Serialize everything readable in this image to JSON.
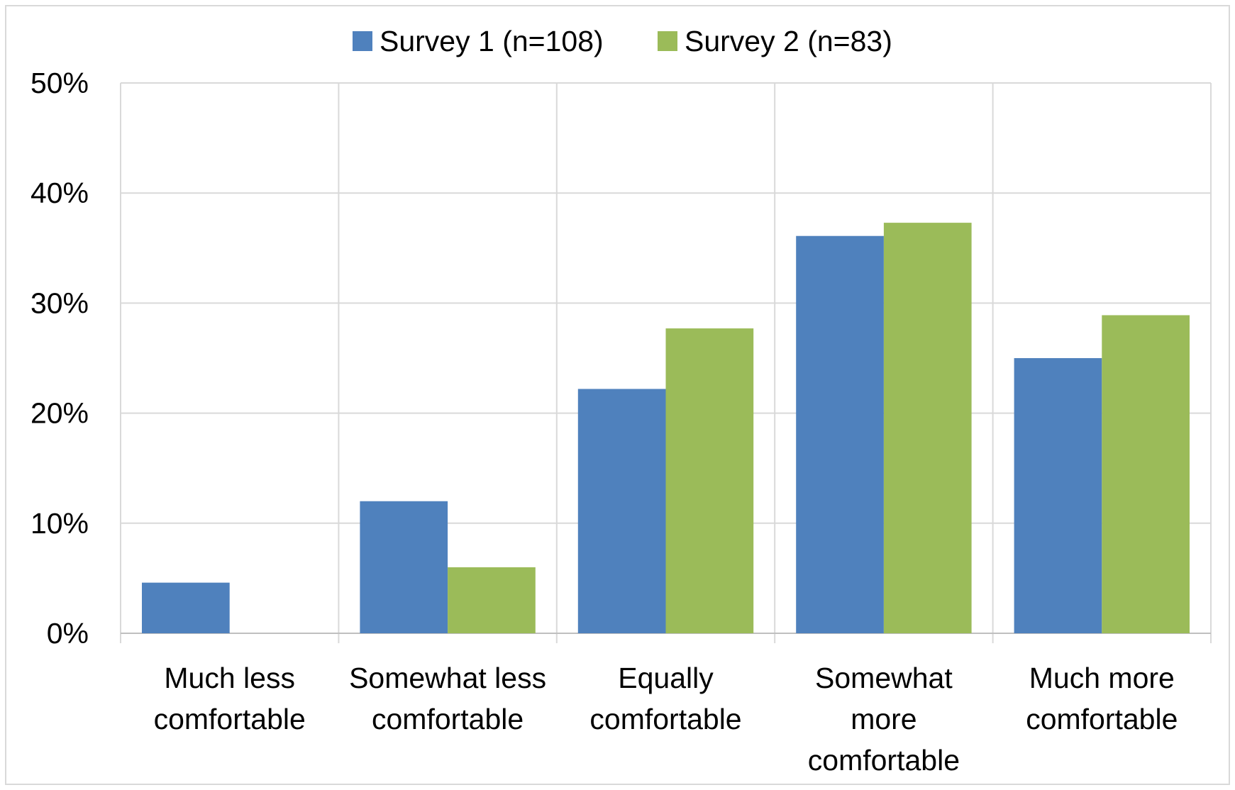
{
  "chart_data": {
    "type": "bar",
    "categories": [
      [
        "Much less",
        "comfortable"
      ],
      [
        "Somewhat less",
        "comfortable"
      ],
      [
        "Equally",
        "comfortable"
      ],
      [
        "Somewhat",
        "more",
        "comfortable"
      ],
      [
        "Much more",
        "comfortable"
      ]
    ],
    "series": [
      {
        "name": "Survey 1 (n=108)",
        "color": "#4F81BD",
        "values": [
          4.6,
          12.0,
          22.2,
          36.1,
          25.0
        ]
      },
      {
        "name": "Survey 2 (n=83)",
        "color": "#9BBB59",
        "values": [
          0.0,
          6.0,
          27.7,
          37.3,
          28.9
        ]
      }
    ],
    "y_ticks": [
      "0%",
      "10%",
      "20%",
      "30%",
      "40%",
      "50%"
    ],
    "ylim": [
      0,
      50
    ],
    "y_unit": "%",
    "grid": true,
    "legend_position": "top-center",
    "gridline_color": "#D9D9D9",
    "axis_color": "#BFBFBF"
  }
}
